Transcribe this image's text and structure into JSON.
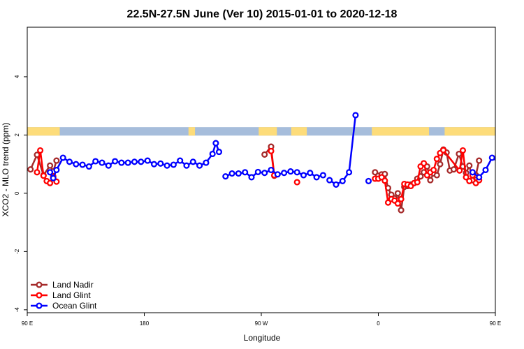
{
  "chart_data": {
    "type": "line",
    "title": "22.5N-27.5N June (Ver 10)   2015-01-01 to 2020-12-18",
    "xlabel": "Longitude",
    "ylabel": "XCO2 - MLO trend (ppm)",
    "xlim": [
      90,
      450
    ],
    "ylim": [
      -4.1,
      5.7
    ],
    "x_ticks": [
      {
        "value": 90,
        "label": "90 E"
      },
      {
        "value": 180,
        "label": "180"
      },
      {
        "value": 270,
        "label": "90 W"
      },
      {
        "value": 360,
        "label": "0"
      },
      {
        "value": 450,
        "label": "90 E"
      }
    ],
    "y_ticks": [
      {
        "value": -4,
        "label": "-4"
      },
      {
        "value": -2,
        "label": "-2"
      },
      {
        "value": 0,
        "label": "0"
      },
      {
        "value": 2,
        "label": "2"
      },
      {
        "value": 4,
        "label": "4"
      }
    ],
    "land_sea_band": {
      "y_bottom": 1.98,
      "y_top": 2.27,
      "ocean_color": "#a6bddb",
      "land_color": "#fddc7a",
      "land_ranges": [
        [
          90,
          115
        ],
        [
          214,
          219
        ],
        [
          268,
          282
        ],
        [
          293,
          305
        ],
        [
          355,
          399
        ],
        [
          411,
          463
        ]
      ]
    },
    "legend_position": "bottom-left",
    "series": [
      {
        "name": "Land Nadir",
        "color": "#a52a2a",
        "segments": [
          [
            [
              92.5,
              0.82
            ],
            [
              97.5,
              1.32
            ],
            [
              102.5,
              0.62
            ],
            [
              107.5,
              0.95
            ],
            [
              110,
              0.75
            ],
            [
              112.5,
              1.12
            ]
          ],
          [
            [
              272.5,
              1.33
            ],
            [
              277.5,
              1.6
            ],
            [
              280,
              0.6
            ]
          ],
          [
            [
              357.5,
              0.72
            ],
            [
              360,
              0.6
            ],
            [
              362.5,
              0.65
            ],
            [
              365,
              0.66
            ],
            [
              367.5,
              0.18
            ],
            [
              370,
              -0.05
            ],
            [
              372.5,
              -0.17
            ],
            [
              375,
              0
            ],
            [
              377.5,
              -0.58
            ],
            [
              380,
              0.22
            ],
            [
              382.5,
              0.25
            ],
            [
              385,
              0.3
            ],
            [
              387.5,
              0.35
            ],
            [
              390,
              0.5
            ],
            [
              392.5,
              0.58
            ],
            [
              395,
              0.72
            ],
            [
              397.5,
              0.92
            ],
            [
              400,
              0.45
            ],
            [
              402.5,
              0.68
            ],
            [
              405,
              0.62
            ],
            [
              407.5,
              1.0
            ],
            [
              410,
              1.5
            ],
            [
              412.5,
              1.4
            ],
            [
              415,
              0.78
            ],
            [
              418,
              0.82
            ],
            [
              422,
              1.35
            ],
            [
              425,
              0.92
            ],
            [
              427.5,
              0.7
            ],
            [
              430,
              0.95
            ],
            [
              432.5,
              0.45
            ],
            [
              435,
              0.62
            ],
            [
              437.5,
              1.12
            ]
          ]
        ]
      },
      {
        "name": "Land Glint",
        "color": "#ff0000",
        "segments": [
          [
            [
              97.5,
              0.72
            ],
            [
              100,
              1.47
            ],
            [
              102.5,
              0.6
            ],
            [
              105,
              0.42
            ],
            [
              107.5,
              0.35
            ],
            [
              110,
              0.58
            ],
            [
              112.5,
              0.4
            ]
          ],
          [
            [
              277.5,
              1.45
            ],
            [
              280,
              0.62
            ]
          ],
          [
            [
              297.5,
              0.38
            ]
          ],
          [
            [
              357.5,
              0.5
            ],
            [
              360,
              0.5
            ],
            [
              362.5,
              0.55
            ],
            [
              365,
              0.43
            ],
            [
              367.5,
              -0.32
            ],
            [
              370,
              -0.2
            ],
            [
              372.5,
              -0.25
            ],
            [
              375,
              -0.35
            ],
            [
              377.5,
              -0.2
            ],
            [
              380,
              0.32
            ],
            [
              382.5,
              0.3
            ],
            [
              385,
              0.25
            ],
            [
              387.5,
              0.35
            ],
            [
              390,
              0.38
            ],
            [
              392.5,
              0.92
            ],
            [
              395,
              1.03
            ],
            [
              397.5,
              0.62
            ],
            [
              400,
              0.72
            ],
            [
              402.5,
              0.8
            ],
            [
              405,
              1.18
            ],
            [
              407.5,
              1.38
            ],
            [
              410,
              1.48
            ],
            [
              422.5,
              0.78
            ],
            [
              425,
              1.47
            ],
            [
              427.5,
              0.55
            ],
            [
              430,
              0.42
            ],
            [
              432.5,
              0.62
            ],
            [
              435,
              0.35
            ],
            [
              437.5,
              0.45
            ]
          ]
        ]
      },
      {
        "name": "Ocean Glint",
        "color": "#0000ff",
        "segments": [
          [
            [
              107.5,
              0.72
            ],
            [
              110,
              0.52
            ],
            [
              112.5,
              0.8
            ],
            [
              117.5,
              1.22
            ],
            [
              122.5,
              1.08
            ],
            [
              127.5,
              1.0
            ],
            [
              132.5,
              0.98
            ],
            [
              137.5,
              0.92
            ],
            [
              142.5,
              1.1
            ],
            [
              147.5,
              1.05
            ],
            [
              152.5,
              0.95
            ],
            [
              157.5,
              1.1
            ],
            [
              162.5,
              1.05
            ],
            [
              167.5,
              1.05
            ],
            [
              172.5,
              1.08
            ],
            [
              177.5,
              1.08
            ],
            [
              182.5,
              1.12
            ],
            [
              187.5,
              1.0
            ],
            [
              192.5,
              1.02
            ],
            [
              197.5,
              0.95
            ],
            [
              202.5,
              0.98
            ],
            [
              207.5,
              1.12
            ],
            [
              212.5,
              0.95
            ],
            [
              217.5,
              1.08
            ],
            [
              222.5,
              0.95
            ],
            [
              227.5,
              1.05
            ],
            [
              232.5,
              1.35
            ],
            [
              235,
              1.72
            ],
            [
              237.5,
              1.42
            ]
          ],
          [
            [
              242.5,
              0.58
            ],
            [
              247.5,
              0.68
            ],
            [
              252.5,
              0.68
            ],
            [
              257.5,
              0.72
            ],
            [
              262.5,
              0.55
            ],
            [
              267.5,
              0.73
            ],
            [
              272.5,
              0.7
            ],
            [
              277.5,
              0.8
            ],
            [
              282.5,
              0.65
            ],
            [
              287.5,
              0.7
            ],
            [
              292.5,
              0.75
            ],
            [
              297.5,
              0.72
            ],
            [
              302.5,
              0.62
            ],
            [
              307.5,
              0.7
            ],
            [
              312.5,
              0.55
            ],
            [
              317.5,
              0.62
            ]
          ],
          [
            [
              322.5,
              0.45
            ],
            [
              327.5,
              0.3
            ],
            [
              332.5,
              0.42
            ],
            [
              337.5,
              0.72
            ],
            [
              342.5,
              2.68
            ]
          ],
          [
            [
              352.5,
              0.42
            ]
          ],
          [
            [
              432.5,
              0.72
            ],
            [
              437.5,
              0.55
            ],
            [
              442.5,
              0.8
            ],
            [
              447.5,
              1.22
            ],
            [
              452.5,
              1.08
            ],
            [
              457.5,
              1.0
            ],
            [
              462.5,
              0.98
            ],
            [
              467.5,
              0.92
            ],
            [
              472.5,
              1.1
            ],
            [
              477.5,
              1.05
            ],
            [
              482.5,
              0.95
            ],
            [
              487.5,
              1.15
            ],
            [
              492.5,
              1.05
            ]
          ]
        ]
      }
    ]
  }
}
